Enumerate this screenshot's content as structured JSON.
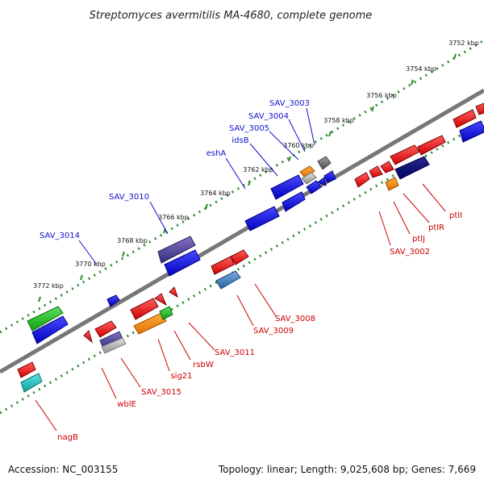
{
  "title": "Streptomyces avermitilis MA-4680, complete genome",
  "footer": {
    "accession": "Accession: NC_003155",
    "summary": "Topology: linear; Length: 9,025,608 bp; Genes: 7,669"
  },
  "colors": {
    "plus_label": "#1010cc",
    "minus_label": "#cc0000",
    "backbone": "#777777",
    "ruler": "#2a8a2a"
  },
  "ruler_ticks": [
    "3752 kbp",
    "3754 kbp",
    "3756 kbp",
    "3758 kbp",
    "3760 kbp",
    "3762 kbp",
    "3764 kbp",
    "3766 kbp",
    "3768 kbp",
    "3770 kbp",
    "3772 kbp"
  ],
  "top_labels": [
    "SAV_3003",
    "SAV_3004",
    "SAV_3005",
    "idsB",
    "eshA",
    "SAV_3010",
    "SAV_3014"
  ],
  "bottom_labels": [
    "ptlI",
    "ptlR",
    "ptlJ",
    "SAV_3002",
    "SAV_3008",
    "SAV_3009",
    "SAV_3011",
    "rsbW",
    "sig21",
    "SAV_3015",
    "wblE",
    "nagB"
  ]
}
